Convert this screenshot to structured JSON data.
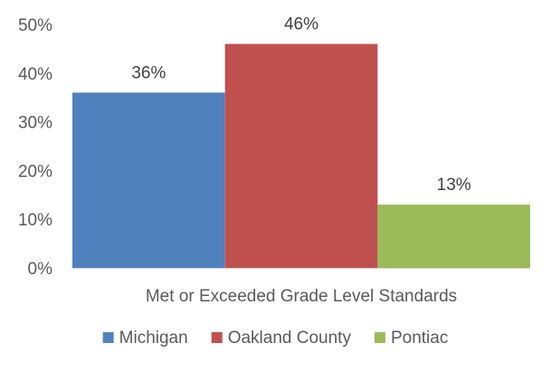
{
  "chart_data": {
    "type": "bar",
    "categories": [
      "Met or Exceeded Grade Level Standards"
    ],
    "series": [
      {
        "name": "Michigan",
        "values": [
          36
        ],
        "color": "#4f81bd",
        "label": "36%"
      },
      {
        "name": "Oakland County",
        "values": [
          46
        ],
        "color": "#c0504d",
        "label": "46%"
      },
      {
        "name": "Pontiac",
        "values": [
          13
        ],
        "color": "#9bbb59",
        "label": "13%"
      }
    ],
    "title": "",
    "xlabel": "",
    "ylabel": "",
    "ylim": [
      0,
      50
    ],
    "yticks": [
      0,
      10,
      20,
      30,
      40,
      50
    ],
    "ytick_labels": [
      "0%",
      "10%",
      "20%",
      "30%",
      "40%",
      "50%"
    ],
    "grid": false,
    "legend": "bottom"
  }
}
